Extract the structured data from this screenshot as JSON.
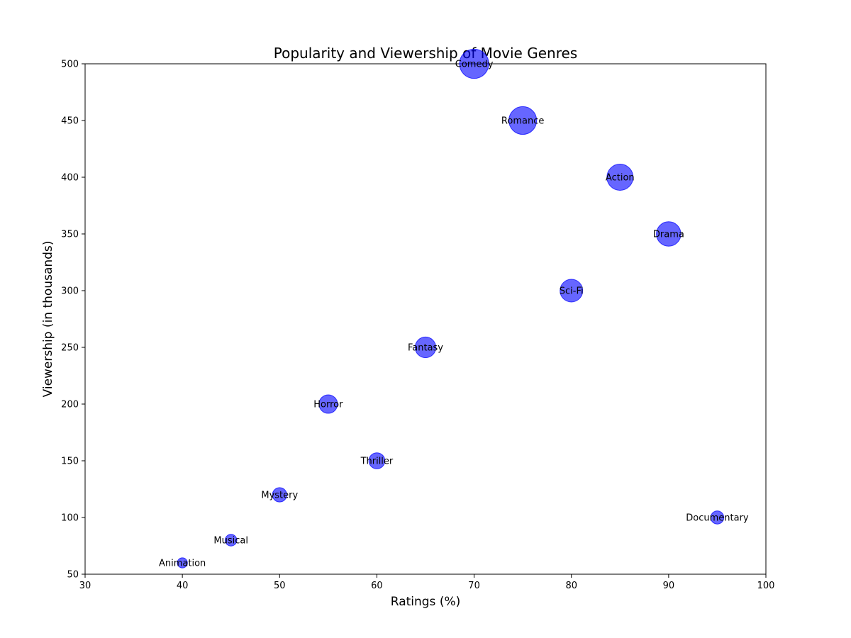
{
  "chart_data": {
    "type": "scatter",
    "title": "Popularity and Viewership of Movie Genres",
    "xlabel": "Ratings (%)",
    "ylabel": "Viewership (in thousands)",
    "xlim": [
      30,
      100
    ],
    "ylim": [
      50,
      500
    ],
    "xticks": [
      30,
      40,
      50,
      60,
      70,
      80,
      90,
      100
    ],
    "yticks": [
      50,
      100,
      150,
      200,
      250,
      300,
      350,
      400,
      450,
      500
    ],
    "grid": false,
    "marker_color": "#0000ff",
    "marker_alpha": 0.6,
    "points": [
      {
        "label": "Action",
        "x": 85,
        "y": 400
      },
      {
        "label": "Comedy",
        "x": 70,
        "y": 500
      },
      {
        "label": "Drama",
        "x": 90,
        "y": 350
      },
      {
        "label": "Horror",
        "x": 55,
        "y": 200
      },
      {
        "label": "Romance",
        "x": 75,
        "y": 450
      },
      {
        "label": "Sci-Fi",
        "x": 80,
        "y": 300
      },
      {
        "label": "Thriller",
        "x": 60,
        "y": 150
      },
      {
        "label": "Fantasy",
        "x": 65,
        "y": 250
      },
      {
        "label": "Mystery",
        "x": 50,
        "y": 120
      },
      {
        "label": "Documentary",
        "x": 95,
        "y": 100
      },
      {
        "label": "Animation",
        "x": 40,
        "y": 60
      },
      {
        "label": "Musical",
        "x": 45,
        "y": 80
      }
    ]
  }
}
